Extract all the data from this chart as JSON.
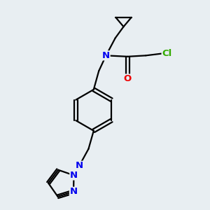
{
  "bg_color": "#e8eef2",
  "bond_color": "#000000",
  "bond_width": 1.6,
  "atom_colors": {
    "N": "#0000ee",
    "O": "#ee0000",
    "Cl": "#33aa00"
  },
  "font_size_atom": 9.5
}
